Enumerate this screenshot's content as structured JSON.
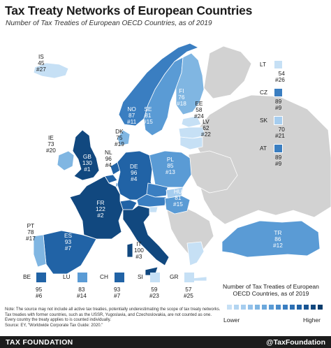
{
  "title": "Tax Treaty Networks of European Countries",
  "subtitle": "Number of Tax Treaties of European OECD Countries, as of 2019",
  "colors": {
    "scale": [
      "#c6e0f5",
      "#a6cdef",
      "#80b6e2",
      "#5a9bd5",
      "#3a7ec1",
      "#2163a6",
      "#11487f"
    ],
    "non_oecd": "#d2d2d2",
    "sea": "#ffffff",
    "border": "#ffffff",
    "footer": "#1c1c1c"
  },
  "countries": [
    {
      "code": "IS",
      "treaties": "45",
      "rank": "#27"
    },
    {
      "code": "NO",
      "treaties": "87",
      "rank": "#11"
    },
    {
      "code": "SE",
      "treaties": "81",
      "rank": "#15"
    },
    {
      "code": "FI",
      "treaties": "76",
      "rank": "#18"
    },
    {
      "code": "EE",
      "treaties": "58",
      "rank": "#24"
    },
    {
      "code": "LV",
      "treaties": "62",
      "rank": "#22"
    },
    {
      "code": "DK",
      "treaties": "75",
      "rank": "#19"
    },
    {
      "code": "IE",
      "treaties": "73",
      "rank": "#20"
    },
    {
      "code": "GB",
      "treaties": "130",
      "rank": "#1"
    },
    {
      "code": "NL",
      "treaties": "96",
      "rank": "#4"
    },
    {
      "code": "DE",
      "treaties": "96",
      "rank": "#4"
    },
    {
      "code": "PL",
      "treaties": "85",
      "rank": "#13"
    },
    {
      "code": "HU",
      "treaties": "81",
      "rank": "#15"
    },
    {
      "code": "FR",
      "treaties": "122",
      "rank": "#2"
    },
    {
      "code": "PT",
      "treaties": "78",
      "rank": "#17"
    },
    {
      "code": "ES",
      "treaties": "93",
      "rank": "#7"
    },
    {
      "code": "IT",
      "treaties": "100",
      "rank": "#3"
    },
    {
      "code": "TR",
      "treaties": "86",
      "rank": "#12"
    }
  ],
  "insets": [
    {
      "code": "LT",
      "treaties": "54",
      "rank": "#26",
      "level": 0
    },
    {
      "code": "CZ",
      "treaties": "89",
      "rank": "#9",
      "level": 4
    },
    {
      "code": "SK",
      "treaties": "70",
      "rank": "#21",
      "level": 1
    },
    {
      "code": "AT",
      "treaties": "89",
      "rank": "#9",
      "level": 4
    }
  ],
  "bottom_boxes": [
    {
      "code": "BE",
      "treaties": "95",
      "rank": "#6",
      "level": 5
    },
    {
      "code": "LU",
      "treaties": "83",
      "rank": "#14",
      "level": 2
    },
    {
      "code": "CH",
      "treaties": "93",
      "rank": "#7",
      "level": 5
    },
    {
      "code": "SI",
      "treaties": "59",
      "rank": "#23",
      "level": 0
    },
    {
      "code": "GR",
      "treaties": "57",
      "rank": "#25",
      "level": 0
    }
  ],
  "legend": {
    "title": "Number of Tax Treaties of European OECD Countries, as of 2019",
    "lower": "Lower",
    "higher": "Higher",
    "steps": [
      "#c6e0f5",
      "#b3d5f1",
      "#a6cdef",
      "#93c1ea",
      "#80b6e2",
      "#6ca8dc",
      "#5a9bd5",
      "#4a8ccb",
      "#3a7ec1",
      "#2d70b4",
      "#2163a6",
      "#185493",
      "#11487f",
      "#0b3c6c"
    ]
  },
  "note": {
    "line1": "Note: The source may not include all active tax treaties, potentially underestimating the scope of tax treaty networks. Tax treaties with former countries, such as the USSR, Yugoslavia, and Czechoslovakia, are not counted as one. Every country the treaty applies to is counted individually.",
    "line2": "Source: EY, \"Worldwide Corporate Tax Guide: 2020.\""
  },
  "footer": {
    "brand": "TAX FOUNDATION",
    "handle": "@TaxFoundation"
  }
}
